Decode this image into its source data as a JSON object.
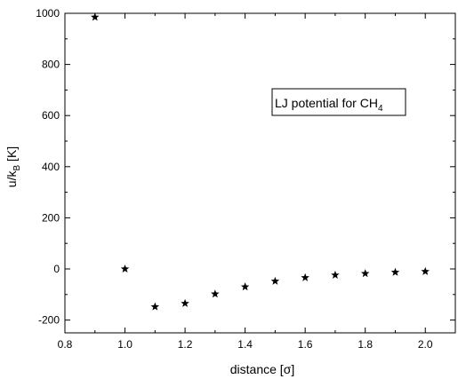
{
  "chart_data": {
    "type": "scatter",
    "title": "",
    "xlabel": "distance [σ]",
    "ylabel": {
      "main": "u/k",
      "sub": "B",
      "unit": " [K]"
    },
    "xlim": [
      0.8,
      2.1
    ],
    "ylim": [
      -250,
      1000
    ],
    "x_ticks": [
      0.8,
      1.0,
      1.2,
      1.4,
      1.6,
      1.8,
      2.0
    ],
    "x_tick_labels": [
      "0.8",
      "1.0",
      "1.2",
      "1.4",
      "1.6",
      "1.8",
      "2.0"
    ],
    "y_ticks": [
      -200,
      0,
      200,
      400,
      600,
      800,
      1000
    ],
    "y_tick_labels": [
      "-200",
      "0",
      "200",
      "400",
      "600",
      "800",
      "1000"
    ],
    "grid": false,
    "marker": "star",
    "marker_color": "#000000",
    "legend": {
      "text": "LJ potential for CH",
      "sub": "4",
      "placement": "upper-right"
    },
    "series": [
      {
        "x": [
          0.9,
          1.0,
          1.1,
          1.2,
          1.3,
          1.4,
          1.5,
          1.6,
          1.7,
          1.8,
          1.9,
          2.0
        ],
        "values": [
          985,
          0,
          -148,
          -135,
          -98,
          -70,
          -48,
          -34,
          -24,
          -18,
          -13,
          -10
        ]
      }
    ]
  }
}
